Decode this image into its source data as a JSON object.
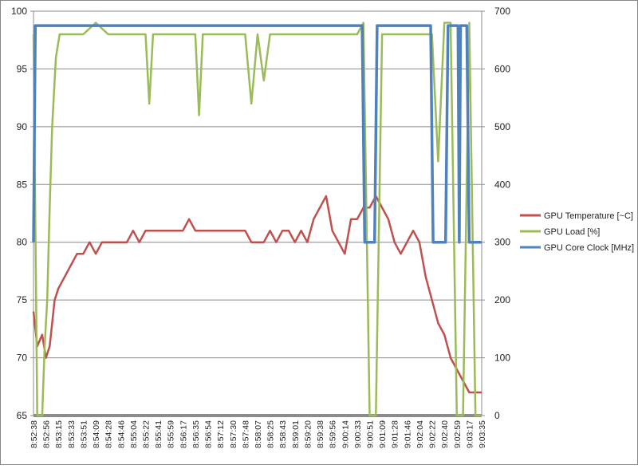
{
  "chart_data": {
    "type": "line",
    "x_tick_labels": [
      "8:52:38",
      "8:52:56",
      "8:53:15",
      "8:53:33",
      "8:53:51",
      "8:54:09",
      "8:54:28",
      "8:54:46",
      "8:55:04",
      "8:55:22",
      "8:55:41",
      "8:55:59",
      "8:56:17",
      "8:56:35",
      "8:56:54",
      "8:57:12",
      "8:57:30",
      "8:57:48",
      "8:58:07",
      "8:58:25",
      "8:58:43",
      "8:59:01",
      "8:59:20",
      "8:59:38",
      "8:59:56",
      "9:00:14",
      "9:00:33",
      "9:00:51",
      "9:01:09",
      "9:01:28",
      "9:01:46",
      "9:02:04",
      "9:02:22",
      "9:02:40",
      "9:02:59",
      "9:03:17",
      "9:03:35"
    ],
    "y_left": {
      "ticks": [
        "65",
        "70",
        "75",
        "80",
        "85",
        "90",
        "95",
        "100"
      ],
      "range": [
        65,
        100
      ]
    },
    "y_right": {
      "ticks": [
        "0",
        "100",
        "200",
        "300",
        "400",
        "500",
        "600",
        "700"
      ],
      "range": [
        0,
        700
      ]
    },
    "grid": true,
    "legend_position": "right",
    "series": [
      {
        "name": "GPU Temperature [~C]",
        "axis": "left",
        "color": "#c0504d",
        "x": [
          0,
          0.3,
          0.7,
          1,
          1.3,
          1.7,
          2,
          2.5,
          3,
          3.5,
          4,
          4.5,
          5,
          5.5,
          6,
          6.5,
          7,
          7.5,
          8,
          8.5,
          9,
          10,
          11,
          12,
          12.5,
          13,
          13.5,
          14,
          14.5,
          15,
          15.5,
          16,
          16.5,
          17,
          17.5,
          18,
          18.5,
          19,
          19.5,
          20,
          20.5,
          21,
          21.5,
          22,
          22.5,
          23,
          23.5,
          24,
          24.5,
          25,
          25.5,
          26,
          26.5,
          27,
          27.5,
          28,
          28.5,
          29,
          29.5,
          30,
          30.5,
          31,
          31.5,
          32,
          32.5,
          33,
          33.5,
          34,
          34.5,
          35,
          35.5,
          36
        ],
        "values": [
          74,
          71,
          72,
          70,
          71,
          75,
          76,
          77,
          78,
          79,
          79,
          80,
          79,
          80,
          80,
          80,
          80,
          80,
          81,
          80,
          81,
          81,
          81,
          81,
          82,
          81,
          81,
          81,
          81,
          81,
          81,
          81,
          81,
          81,
          80,
          80,
          80,
          81,
          80,
          81,
          81,
          80,
          81,
          80,
          82,
          83,
          84,
          81,
          80,
          79,
          82,
          82,
          83,
          83,
          84,
          83,
          82,
          80,
          79,
          80,
          81,
          80,
          77,
          75,
          73,
          72,
          70,
          69,
          68,
          67,
          67,
          67
        ]
      },
      {
        "name": "GPU Load [%]",
        "axis": "left",
        "color": "#9bbb59",
        "x": [
          0,
          0.3,
          0.5,
          0.7,
          0.9,
          1.1,
          1.3,
          1.5,
          1.8,
          2.1,
          2.5,
          3,
          4,
          5,
          6,
          7,
          8,
          9,
          9.3,
          9.6,
          10,
          11,
          12,
          13,
          13.3,
          13.6,
          14,
          15,
          16,
          17,
          17.5,
          18,
          18.5,
          19,
          19.5,
          20,
          21,
          22,
          23,
          24,
          25,
          26,
          26.5,
          27,
          27.5,
          28,
          28.5,
          29,
          30,
          31,
          32,
          32.5,
          33,
          33.5,
          34,
          34.5,
          35,
          35.5,
          36
        ],
        "values": [
          98,
          65,
          65,
          65,
          71,
          75,
          83,
          90,
          96,
          98,
          98,
          98,
          98,
          99,
          98,
          98,
          98,
          98,
          92,
          98,
          98,
          98,
          98,
          98,
          91,
          98,
          98,
          98,
          98,
          98,
          92,
          98,
          94,
          98,
          98,
          98,
          98,
          98,
          98,
          98,
          98,
          98,
          99,
          65,
          65,
          98,
          98,
          98,
          98,
          98,
          98,
          87,
          99,
          99,
          65,
          65,
          99,
          65,
          65
        ]
      },
      {
        "name": "GPU Core Clock [MHz]",
        "axis": "right",
        "color": "#4f81bd",
        "x": [
          0,
          0.15,
          0.3,
          0.5,
          1,
          5,
          10,
          15,
          20,
          25,
          26.4,
          26.6,
          27.4,
          27.6,
          28.5,
          29,
          30,
          31,
          31.9,
          32.1,
          33.1,
          33.3,
          34,
          34.1,
          34.2,
          34.3,
          34.8,
          35,
          36
        ],
        "values": [
          300,
          675,
          675,
          675,
          675,
          675,
          675,
          675,
          675,
          675,
          675,
          300,
          300,
          675,
          675,
          675,
          675,
          675,
          675,
          300,
          300,
          675,
          675,
          675,
          300,
          675,
          675,
          300,
          300
        ]
      }
    ]
  }
}
